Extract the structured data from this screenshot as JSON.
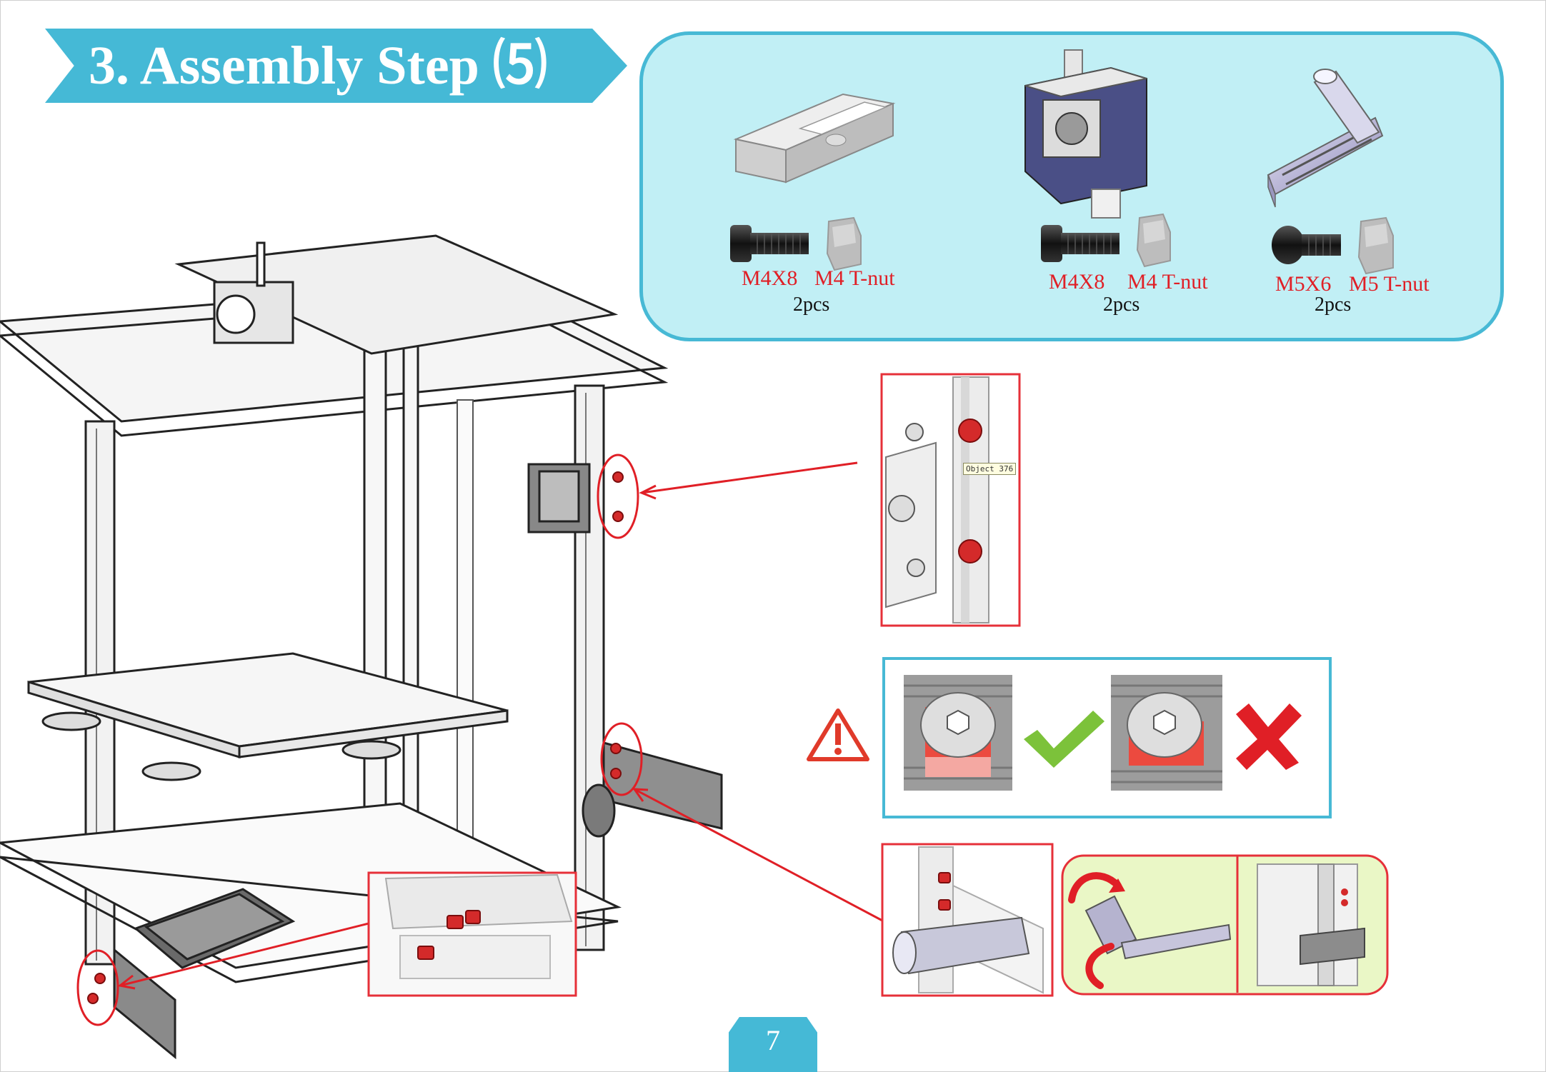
{
  "header": {
    "title": "3. Assembly Step ⑸"
  },
  "parts": [
    {
      "item": "touchscreen-bracket",
      "screw_label": "M4X8",
      "nut_label": "M4 T-nut",
      "count": "2pcs"
    },
    {
      "item": "extruder",
      "screw_label": "M4X8",
      "nut_label": "M4 T-nut",
      "count": "2pcs"
    },
    {
      "item": "spool-holder",
      "screw_label": "M5X6",
      "nut_label": "M5 T-nut",
      "count": "2pcs"
    }
  ],
  "detail_tooltip": "Object 376",
  "footer": {
    "page_number": "7"
  },
  "colors": {
    "accent": "#45b9d6",
    "panel_fill": "#c1eff5",
    "highlight_red": "#e01f26",
    "check_green": "#7cc23a",
    "warning_red": "#e03a2a",
    "rotation_bg": "#eaf7c6"
  },
  "icons": [
    "warning-triangle-icon",
    "checkmark-icon",
    "cross-icon",
    "rotate-arrow-icon"
  ]
}
